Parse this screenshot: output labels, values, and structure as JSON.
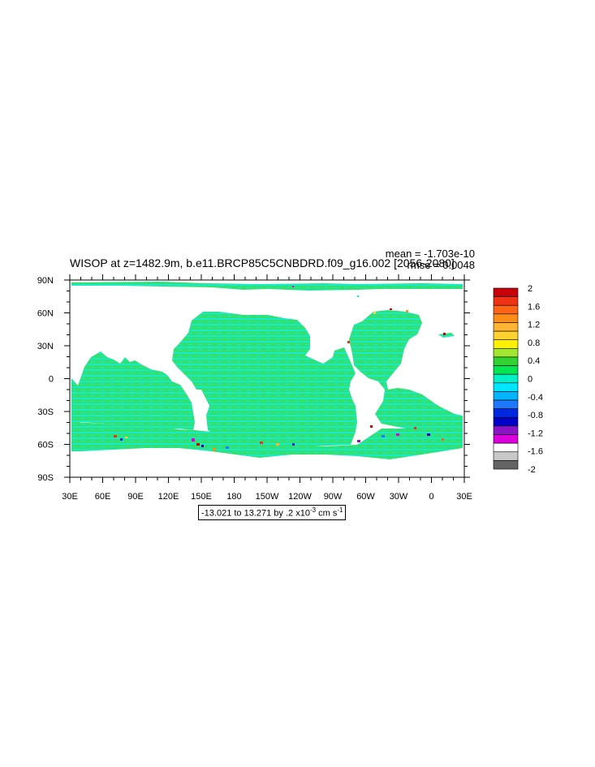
{
  "title": "WISOP at z=1482.9m, b.e11.BRCP85C5CNBDRD.f09_g16.002 [2056-2080]",
  "stats": {
    "mean": "mean = -1.703e-10",
    "rmse": "rmse = 0.0048"
  },
  "contour_info": {
    "range_text": "-13.021 to 13.271 by .2 x10",
    "exponent": "-3",
    "units_text": " cm s",
    "units_exponent": "-1"
  },
  "axes": {
    "lon_labels": [
      "30E",
      "60E",
      "90E",
      "120E",
      "150E",
      "180",
      "150W",
      "120W",
      "90W",
      "60W",
      "30W",
      "0",
      "30E"
    ],
    "lat_labels": [
      "90N",
      "60N",
      "30N",
      "0",
      "30S",
      "60S",
      "90S"
    ]
  },
  "colorbar": {
    "labels": [
      "2",
      "1.6",
      "1.2",
      "0.8",
      "0.4",
      "0",
      "-0.4",
      "-0.8",
      "-1.2",
      "-1.6",
      "-2"
    ],
    "colors": [
      "#c8000a",
      "#f03214",
      "#ff6414",
      "#ff8c14",
      "#ffb432",
      "#ffd232",
      "#fff000",
      "#a0e632",
      "#32d232",
      "#00e650",
      "#00f0c8",
      "#00e6ff",
      "#00b4ff",
      "#1e78ff",
      "#0028dc",
      "#0000c8",
      "#8c14c8",
      "#dc00dc",
      "#ffffff",
      "#c8c8c8",
      "#646464"
    ]
  },
  "color_roles": {
    "land": "#ffffff",
    "ocean_main": "#32e070",
    "ocean_alt": "#16eccc"
  }
}
